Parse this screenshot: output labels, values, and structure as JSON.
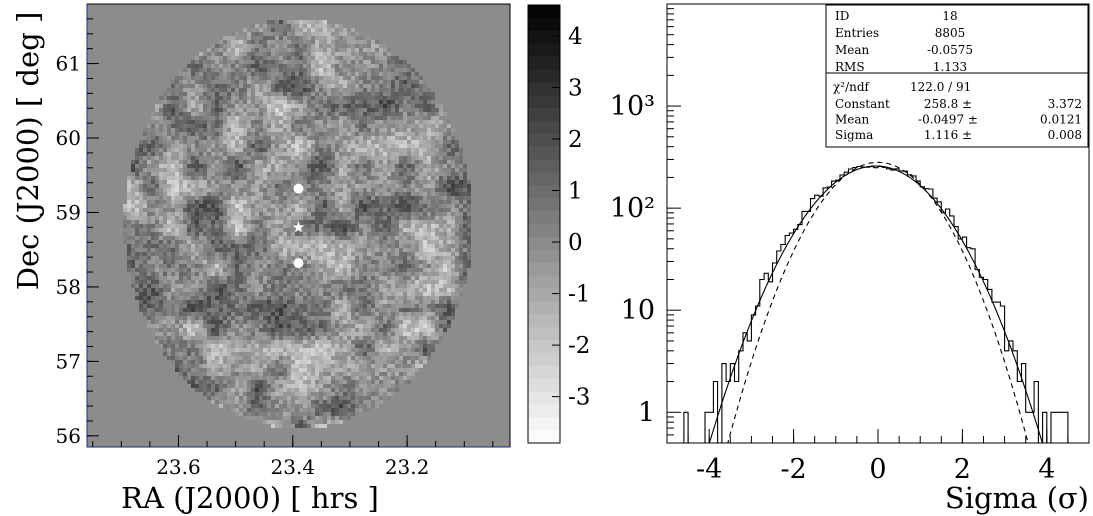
{
  "chart_data": [
    {
      "type": "heatmap",
      "title": "",
      "xlabel": "RA (J2000) [ hrs ]",
      "ylabel": "Dec (J2000) [ deg ]",
      "xlim": [
        23.76,
        23.02
      ],
      "ylim": [
        55.85,
        61.8
      ],
      "x_ticks": [
        "23.6",
        "23.4",
        "23.2"
      ],
      "x_tick_values": [
        23.6,
        23.4,
        23.2
      ],
      "y_ticks": [
        "56",
        "57",
        "58",
        "59",
        "60",
        "61"
      ],
      "y_tick_values": [
        56,
        57,
        58,
        59,
        60,
        61
      ],
      "colorbar": {
        "range": [
          -3.9,
          4.6
        ],
        "ticks": [
          "4",
          "3",
          "2",
          "1",
          "0",
          "-1",
          "-2",
          "-3"
        ],
        "tick_values": [
          4,
          3,
          2,
          1,
          0,
          -1,
          -2,
          -3
        ],
        "colors": [
          "#ffffff",
          "#000000"
        ]
      },
      "background_color": "#8c8c8c",
      "field": {
        "center_ra": 23.39,
        "center_dec": 58.85,
        "radius_ra": 0.305,
        "radius_dec": 2.75,
        "mean": -0.06,
        "sigma": 1.12
      },
      "markers": [
        {
          "shape": "circle",
          "ra": 23.39,
          "dec": 59.32,
          "color": "#ffffff"
        },
        {
          "shape": "star",
          "ra": 23.39,
          "dec": 58.8,
          "color": "#ffffff"
        },
        {
          "shape": "circle",
          "ra": 23.39,
          "dec": 58.32,
          "color": "#ffffff"
        }
      ]
    },
    {
      "type": "line",
      "title": "",
      "xlabel": "Sigma (σ)",
      "ylabel": "",
      "xlim": [
        -5,
        5
      ],
      "ylim": [
        0.5,
        10000
      ],
      "y_scale": "log",
      "x_ticks": [
        "-4",
        "-2",
        "0",
        "2",
        "4"
      ],
      "x_tick_values": [
        -4,
        -2,
        0,
        2,
        4
      ],
      "y_ticks": [
        "1",
        "10",
        "10²",
        "10³"
      ],
      "y_tick_values": [
        1,
        10,
        100,
        1000
      ],
      "bin_width": 0.1,
      "series": [
        {
          "style": "histogram",
          "color": "#000000",
          "mean": -0.0575,
          "rms": 1.133,
          "entries": 8805
        },
        {
          "style": "solid",
          "color": "#000000",
          "function": "gaussian",
          "constant": 258.8,
          "mean": -0.0497,
          "sigma": 1.116
        },
        {
          "style": "dashed",
          "color": "#000000",
          "function": "gaussian",
          "constant": 281,
          "mean": 0,
          "sigma": 1.0
        }
      ],
      "stats": {
        "rows": [
          {
            "label": "ID",
            "value": "18",
            "error": ""
          },
          {
            "label": "Entries",
            "value": "8805",
            "error": ""
          },
          {
            "label": "Mean",
            "value": "-0.0575",
            "error": ""
          },
          {
            "label": "RMS",
            "value": "1.133",
            "error": ""
          }
        ],
        "fit_label": "χ²/ndf",
        "fit_value": "122.0   /   91",
        "fit_rows": [
          {
            "label": "Constant",
            "value": "258.8 ±",
            "error": "3.372"
          },
          {
            "label": "Mean",
            "value": "-0.0497 ±",
            "error": "0.0121"
          },
          {
            "label": "Sigma",
            "value": "1.116 ±",
            "error": "0.008"
          }
        ]
      }
    }
  ]
}
